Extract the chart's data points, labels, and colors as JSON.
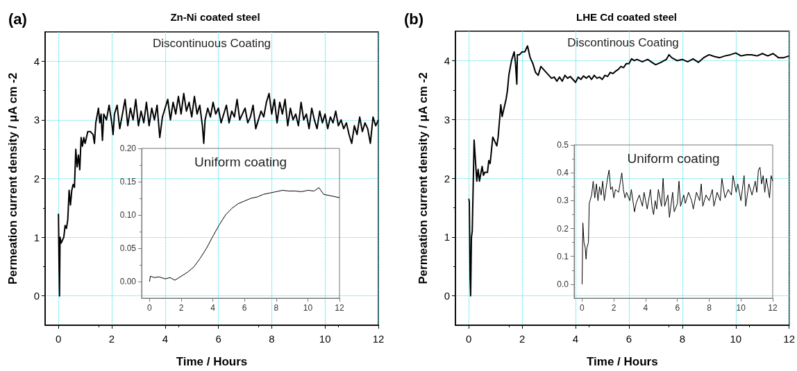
{
  "chart_data": [
    {
      "type": "line",
      "title": "Zn-Ni coated steel",
      "xlabel": "Time / Hours",
      "ylabel": "Permeation current density / μA cm -2",
      "annotations": [
        "(a)",
        "Discontinuous Coating"
      ],
      "grid": true,
      "xlim": [
        -0.5,
        12
      ],
      "xticks": [
        0,
        2,
        4,
        6,
        8,
        10,
        12
      ],
      "ylim": [
        -0.5,
        4.5
      ],
      "yticks": [
        0,
        1,
        2,
        3,
        4
      ],
      "series": [
        {
          "color": "#000000",
          "x": [
            0,
            0.02,
            0.04,
            0.06,
            0.1,
            0.15,
            0.2,
            0.25,
            0.3,
            0.35,
            0.4,
            0.45,
            0.5,
            0.55,
            0.6,
            0.65,
            0.7,
            0.75,
            0.8,
            0.85,
            0.9,
            0.95,
            1.0,
            1.1,
            1.2,
            1.3,
            1.35,
            1.4,
            1.5,
            1.55,
            1.6,
            1.65,
            1.7,
            1.8,
            1.9,
            2.0,
            2.05,
            2.1,
            2.2,
            2.3,
            2.4,
            2.5,
            2.6,
            2.7,
            2.8,
            2.9,
            3.0,
            3.1,
            3.2,
            3.3,
            3.4,
            3.5,
            3.6,
            3.7,
            3.8,
            3.9,
            4.0,
            4.1,
            4.2,
            4.3,
            4.4,
            4.5,
            4.6,
            4.7,
            4.8,
            4.9,
            5.0,
            5.1,
            5.2,
            5.3,
            5.4,
            5.45,
            5.5,
            5.6,
            5.7,
            5.8,
            5.9,
            6.0,
            6.1,
            6.2,
            6.3,
            6.4,
            6.5,
            6.6,
            6.7,
            6.8,
            6.9,
            7.0,
            7.1,
            7.2,
            7.3,
            7.4,
            7.5,
            7.6,
            7.7,
            7.8,
            7.9,
            8.0,
            8.1,
            8.2,
            8.3,
            8.4,
            8.5,
            8.6,
            8.7,
            8.8,
            8.9,
            9.0,
            9.1,
            9.2,
            9.3,
            9.4,
            9.5,
            9.6,
            9.7,
            9.8,
            9.9,
            10.0,
            10.1,
            10.2,
            10.3,
            10.4,
            10.5,
            10.6,
            10.7,
            10.8,
            10.9,
            11.0,
            11.1,
            11.2,
            11.3,
            11.4,
            11.5,
            11.6,
            11.7,
            11.8,
            11.9,
            12.0
          ],
          "values": [
            1.4,
            0.6,
            0,
            1.0,
            0.9,
            0.95,
            1.0,
            1.2,
            1.15,
            1.3,
            1.8,
            1.55,
            1.8,
            1.9,
            1.85,
            2.5,
            2.2,
            2.4,
            2.15,
            2.7,
            2.55,
            2.7,
            2.6,
            2.8,
            2.8,
            2.75,
            2.6,
            2.95,
            3.2,
            2.95,
            3.1,
            2.65,
            3.1,
            3.0,
            3.25,
            2.95,
            2.75,
            3.1,
            3.25,
            2.85,
            3.1,
            3.35,
            2.9,
            3.2,
            3.0,
            3.35,
            2.9,
            3.15,
            2.95,
            3.3,
            2.9,
            3.2,
            3.0,
            3.25,
            2.7,
            3.05,
            3.2,
            3.35,
            3.0,
            3.3,
            3.1,
            3.4,
            3.1,
            3.45,
            3.15,
            3.3,
            3.05,
            3.4,
            3.1,
            3.25,
            2.9,
            2.6,
            3.0,
            3.2,
            3.05,
            3.3,
            3.1,
            3.2,
            2.95,
            3.1,
            3.25,
            2.95,
            3.15,
            3.05,
            3.35,
            3.0,
            3.1,
            3.2,
            2.95,
            3.05,
            3.25,
            2.85,
            3.0,
            3.15,
            3.05,
            3.3,
            3.45,
            3.1,
            3.35,
            2.95,
            3.3,
            3.1,
            3.35,
            2.9,
            3.2,
            3.0,
            3.1,
            2.9,
            3.3,
            3.0,
            3.1,
            2.85,
            3.2,
            3.0,
            2.85,
            3.15,
            2.95,
            3.1,
            2.85,
            3.05,
            2.95,
            3.15,
            2.9,
            3.0,
            2.85,
            2.95,
            2.75,
            2.6,
            2.9,
            2.75,
            3.05,
            2.8,
            2.95,
            2.85,
            2.6,
            3.05,
            2.9,
            3.0
          ]
        }
      ]
    },
    {
      "type": "line",
      "annotations": [
        "Uniform coating"
      ],
      "xlim": [
        -0.5,
        12
      ],
      "xticks": [
        0,
        2,
        4,
        6,
        8,
        10,
        12
      ],
      "ylim": [
        -0.025,
        0.2
      ],
      "yticks": [
        {
          "value": 0,
          "label": "0.00"
        },
        {
          "value": 0.05,
          "label": "0.05"
        },
        {
          "value": 0.1,
          "label": "0.10"
        },
        {
          "value": 0.15,
          "label": "0.15"
        },
        {
          "value": 0.2,
          "label": "0.20"
        }
      ],
      "series": [
        {
          "color": "#000000",
          "x": [
            0,
            0.05,
            0.3,
            0.6,
            1.0,
            1.3,
            1.6,
            2.0,
            2.4,
            2.8,
            3.2,
            3.6,
            4.0,
            4.4,
            4.8,
            5.2,
            5.6,
            6.0,
            6.4,
            6.8,
            7.2,
            7.6,
            8.0,
            8.4,
            8.8,
            9.2,
            9.6,
            10.0,
            10.4,
            10.7,
            11.0,
            11.4,
            12.0
          ],
          "values": [
            0.0,
            0.008,
            0.006,
            0.007,
            0.004,
            0.006,
            0.002,
            0.008,
            0.014,
            0.022,
            0.035,
            0.05,
            0.068,
            0.085,
            0.1,
            0.11,
            0.117,
            0.121,
            0.125,
            0.127,
            0.131,
            0.133,
            0.135,
            0.137,
            0.136,
            0.136,
            0.135,
            0.137,
            0.136,
            0.141,
            0.131,
            0.129,
            0.126
          ]
        }
      ]
    },
    {
      "type": "line",
      "title": "LHE Cd coated steel",
      "xlabel": "Time / Hours",
      "ylabel": "Permeation current density / μA cm -2",
      "annotations": [
        "(b)",
        "Discontinous Coating"
      ],
      "grid": true,
      "xlim": [
        -0.5,
        12
      ],
      "xticks": [
        0,
        2,
        4,
        6,
        8,
        10,
        12
      ],
      "ylim": [
        -0.5,
        4.5
      ],
      "yticks": [
        0,
        1,
        2,
        3,
        4
      ],
      "series": [
        {
          "color": "#000000",
          "x": [
            0,
            0.02,
            0.05,
            0.07,
            0.1,
            0.13,
            0.2,
            0.25,
            0.3,
            0.35,
            0.4,
            0.5,
            0.55,
            0.6,
            0.7,
            0.75,
            0.8,
            0.9,
            1.0,
            1.05,
            1.1,
            1.2,
            1.25,
            1.3,
            1.4,
            1.45,
            1.5,
            1.6,
            1.7,
            1.75,
            1.8,
            1.82,
            1.9,
            2.0,
            2.1,
            2.2,
            2.3,
            2.4,
            2.5,
            2.6,
            2.7,
            2.8,
            2.9,
            3.0,
            3.1,
            3.2,
            3.3,
            3.4,
            3.5,
            3.6,
            3.7,
            3.8,
            3.9,
            4.0,
            4.1,
            4.2,
            4.3,
            4.4,
            4.5,
            4.6,
            4.7,
            4.8,
            4.9,
            5.0,
            5.1,
            5.2,
            5.3,
            5.4,
            5.5,
            5.6,
            5.7,
            5.8,
            5.9,
            6.0,
            6.1,
            6.2,
            6.3,
            6.5,
            6.7,
            6.9,
            7.0,
            7.2,
            7.4,
            7.5,
            7.6,
            7.8,
            8.0,
            8.2,
            8.4,
            8.6,
            8.8,
            9.0,
            9.2,
            9.4,
            9.6,
            9.8,
            10.0,
            10.2,
            10.4,
            10.6,
            10.8,
            11.0,
            11.2,
            11.4,
            11.6,
            11.8,
            12.0
          ],
          "values": [
            1.65,
            1.6,
            0.3,
            0,
            1.0,
            1.1,
            2.65,
            2.3,
            1.95,
            2.15,
            1.95,
            2.2,
            2.05,
            2.1,
            2.1,
            2.3,
            2.25,
            2.7,
            2.6,
            2.55,
            2.7,
            3.25,
            3.05,
            3.15,
            3.35,
            3.5,
            3.75,
            4.0,
            4.15,
            3.95,
            3.6,
            4.1,
            4.1,
            4.15,
            4.15,
            4.25,
            4.05,
            3.95,
            3.8,
            3.75,
            3.9,
            3.85,
            3.8,
            3.75,
            3.7,
            3.72,
            3.65,
            3.72,
            3.65,
            3.75,
            3.7,
            3.73,
            3.68,
            3.63,
            3.72,
            3.68,
            3.74,
            3.7,
            3.74,
            3.68,
            3.75,
            3.7,
            3.72,
            3.68,
            3.75,
            3.73,
            3.8,
            3.78,
            3.82,
            3.85,
            3.9,
            3.88,
            3.95,
            3.95,
            4.03,
            4.0,
            4.02,
            3.98,
            4.02,
            3.96,
            3.93,
            3.97,
            4.02,
            4.1,
            4.05,
            4.0,
            4.02,
            3.98,
            4.03,
            3.97,
            4.05,
            4.1,
            4.07,
            4.05,
            4.08,
            4.1,
            4.13,
            4.08,
            4.1,
            4.1,
            4.08,
            4.12,
            4.08,
            4.12,
            4.05,
            4.05,
            4.08
          ]
        }
      ]
    },
    {
      "type": "line",
      "annotations": [
        "Uniform coating"
      ],
      "xlim": [
        -0.5,
        12
      ],
      "xticks": [
        0,
        2,
        4,
        6,
        8,
        10,
        12
      ],
      "ylim": [
        -0.05,
        0.5
      ],
      "yticks": [
        {
          "value": 0,
          "label": "0.0"
        },
        {
          "value": 0.1,
          "label": "0.1"
        },
        {
          "value": 0.2,
          "label": "0.2"
        },
        {
          "value": 0.3,
          "label": "0.3"
        },
        {
          "value": 0.4,
          "label": "0.4"
        },
        {
          "value": 0.5,
          "label": "0.5"
        }
      ],
      "series": [
        {
          "color": "#000000",
          "x": [
            0,
            0.05,
            0.12,
            0.2,
            0.25,
            0.3,
            0.4,
            0.45,
            0.6,
            0.7,
            0.8,
            0.9,
            1.0,
            1.1,
            1.2,
            1.3,
            1.4,
            1.6,
            1.7,
            1.8,
            1.9,
            2.0,
            2.1,
            2.3,
            2.5,
            2.6,
            2.7,
            2.8,
            3.0,
            3.1,
            3.2,
            3.3,
            3.4,
            3.6,
            3.8,
            3.9,
            4.0,
            4.1,
            4.3,
            4.4,
            4.5,
            4.6,
            4.7,
            4.8,
            5.0,
            5.1,
            5.2,
            5.4,
            5.5,
            5.7,
            5.8,
            6.0,
            6.1,
            6.2,
            6.4,
            6.5,
            6.7,
            6.9,
            7.0,
            7.2,
            7.4,
            7.5,
            7.6,
            7.8,
            8.0,
            8.2,
            8.3,
            8.5,
            8.7,
            8.8,
            9.0,
            9.2,
            9.4,
            9.5,
            9.7,
            9.8,
            10.0,
            10.2,
            10.3,
            10.5,
            10.7,
            10.9,
            11.0,
            11.1,
            11.2,
            11.3,
            11.4,
            11.5,
            11.6,
            11.8,
            11.9,
            12.0
          ],
          "values": [
            0.0,
            0.22,
            0.15,
            0.13,
            0.09,
            0.13,
            0.15,
            0.29,
            0.32,
            0.37,
            0.31,
            0.36,
            0.3,
            0.35,
            0.32,
            0.37,
            0.3,
            0.38,
            0.41,
            0.34,
            0.35,
            0.31,
            0.34,
            0.33,
            0.4,
            0.34,
            0.31,
            0.33,
            0.3,
            0.34,
            0.3,
            0.26,
            0.29,
            0.32,
            0.28,
            0.33,
            0.3,
            0.27,
            0.34,
            0.28,
            0.25,
            0.3,
            0.27,
            0.34,
            0.28,
            0.38,
            0.28,
            0.32,
            0.24,
            0.33,
            0.26,
            0.29,
            0.37,
            0.28,
            0.32,
            0.29,
            0.33,
            0.3,
            0.27,
            0.33,
            0.3,
            0.36,
            0.28,
            0.32,
            0.3,
            0.34,
            0.28,
            0.33,
            0.3,
            0.38,
            0.31,
            0.34,
            0.32,
            0.39,
            0.33,
            0.36,
            0.3,
            0.39,
            0.28,
            0.36,
            0.32,
            0.37,
            0.33,
            0.41,
            0.42,
            0.36,
            0.39,
            0.33,
            0.38,
            0.31,
            0.39,
            0.37
          ]
        }
      ]
    }
  ]
}
